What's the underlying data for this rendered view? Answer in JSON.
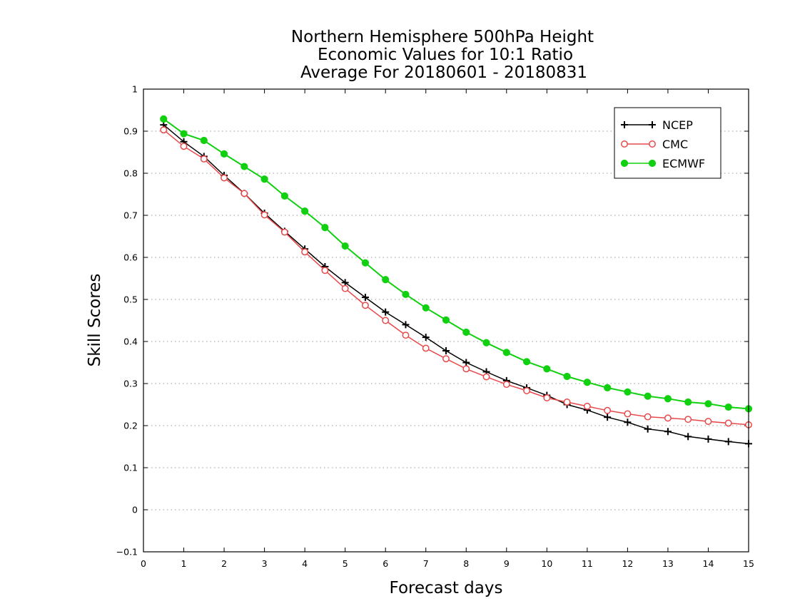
{
  "chart_data": {
    "type": "line",
    "title": [
      "Northern Hemisphere 500hPa Height",
      "Economic Values for 10:1 Ratio",
      "Average For 20180601 - 20180831"
    ],
    "xlabel": "Forecast days",
    "ylabel": "Skill Scores",
    "xlim": [
      0,
      15
    ],
    "ylim": [
      -0.1,
      1
    ],
    "xticks": [
      "0",
      "1",
      "2",
      "3",
      "4",
      "5",
      "6",
      "7",
      "8",
      "9",
      "10",
      "11",
      "12",
      "13",
      "14",
      "15"
    ],
    "yticks": [
      "−0.1",
      "0",
      "0.1",
      "0.2",
      "0.3",
      "0.4",
      "0.5",
      "0.6",
      "0.7",
      "0.8",
      "0.9",
      "1"
    ],
    "grid": "horizontal-dotted",
    "legend_position": "top-right",
    "x": [
      0.5,
      1,
      1.5,
      2,
      2.5,
      3,
      3.5,
      4,
      4.5,
      5,
      5.5,
      6,
      6.5,
      7,
      7.5,
      8,
      8.5,
      9,
      9.5,
      10,
      10.5,
      11,
      11.5,
      12,
      12.5,
      13,
      13.5,
      14,
      14.5,
      15
    ],
    "series": [
      {
        "name": "NCEP",
        "color": "#000000",
        "marker": "plus",
        "values": [
          0.915,
          0.875,
          0.84,
          0.795,
          0.752,
          0.705,
          0.662,
          0.62,
          0.578,
          0.54,
          0.505,
          0.47,
          0.44,
          0.41,
          0.378,
          0.35,
          0.328,
          0.307,
          0.29,
          0.272,
          0.25,
          0.237,
          0.22,
          0.208,
          0.192,
          0.186,
          0.174,
          0.168,
          0.162,
          0.157
        ]
      },
      {
        "name": "CMC",
        "color": "#e8484a",
        "marker": "open-circle",
        "values": [
          0.903,
          0.864,
          0.834,
          0.789,
          0.752,
          0.701,
          0.66,
          0.613,
          0.569,
          0.526,
          0.486,
          0.45,
          0.415,
          0.384,
          0.359,
          0.335,
          0.316,
          0.298,
          0.283,
          0.266,
          0.256,
          0.246,
          0.236,
          0.228,
          0.221,
          0.218,
          0.215,
          0.21,
          0.206,
          0.202
        ]
      },
      {
        "name": "ECMWF",
        "color": "#10d010",
        "marker": "filled-circle",
        "values": [
          0.929,
          0.894,
          0.878,
          0.846,
          0.816,
          0.786,
          0.746,
          0.71,
          0.671,
          0.627,
          0.587,
          0.547,
          0.512,
          0.48,
          0.451,
          0.422,
          0.397,
          0.374,
          0.352,
          0.335,
          0.317,
          0.303,
          0.29,
          0.28,
          0.27,
          0.264,
          0.256,
          0.252,
          0.244,
          0.24
        ]
      }
    ]
  }
}
